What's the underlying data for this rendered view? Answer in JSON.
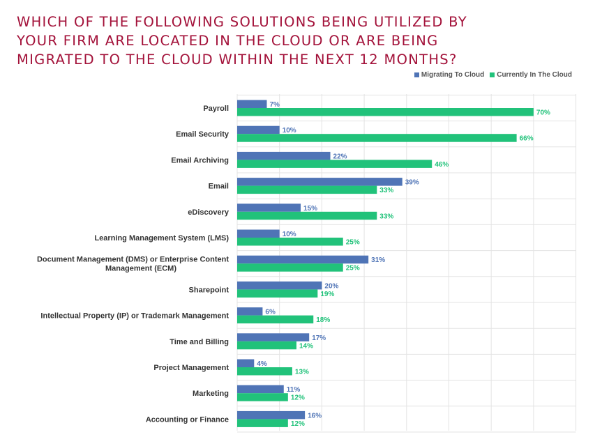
{
  "title": "WHICH OF THE FOLLOWING SOLUTIONS BEING UTILIZED BY YOUR FIRM ARE LOCATED IN THE CLOUD OR ARE BEING MIGRATED TO THE CLOUD WITHIN THE NEXT 12 MONTHS?",
  "colors": {
    "title": "#a3123a",
    "migrating": "#4f74b6",
    "current": "#21c27a",
    "grid": "#e3e3e3"
  },
  "chart_data": {
    "type": "bar",
    "orientation": "horizontal",
    "title": "WHICH OF THE FOLLOWING SOLUTIONS BEING UTILIZED BY YOUR FIRM ARE LOCATED IN THE CLOUD OR ARE BEING MIGRATED TO THE CLOUD WITHIN THE NEXT 12 MONTHS?",
    "xlim": [
      0,
      80
    ],
    "grid": true,
    "legend_position": "top-right",
    "categories": [
      [
        "Payroll"
      ],
      [
        "Email Security"
      ],
      [
        "Email Archiving"
      ],
      [
        "Email"
      ],
      [
        "eDiscovery"
      ],
      [
        "Learning Management System (LMS)"
      ],
      [
        "Document Management (DMS) or Enterprise Content",
        "Management (ECM)"
      ],
      [
        "Sharepoint"
      ],
      [
        "Intellectual Property (IP) or Trademark Management"
      ],
      [
        "Time and Billing"
      ],
      [
        "Project Management"
      ],
      [
        "Marketing"
      ],
      [
        "Accounting or Finance"
      ]
    ],
    "series": [
      {
        "name": "Migrating To Cloud",
        "color": "#4f74b6",
        "values": [
          7,
          10,
          22,
          39,
          15,
          10,
          31,
          20,
          6,
          17,
          4,
          11,
          16
        ]
      },
      {
        "name": "Currently In The Cloud",
        "color": "#21c27a",
        "values": [
          70,
          66,
          46,
          33,
          33,
          25,
          25,
          19,
          18,
          14,
          13,
          12,
          12
        ]
      }
    ],
    "value_suffix": "%"
  }
}
